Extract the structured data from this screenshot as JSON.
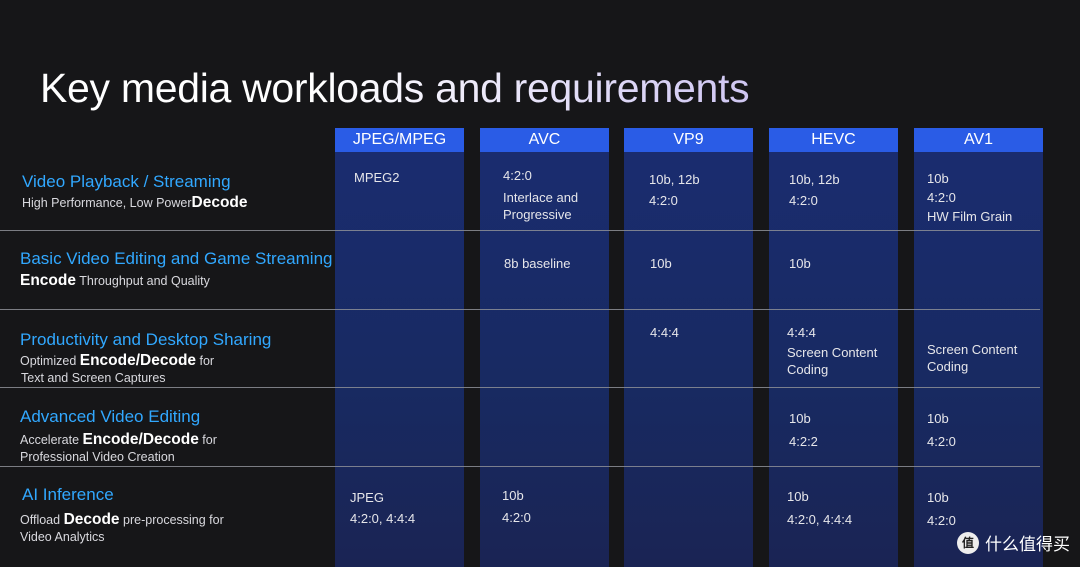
{
  "title": "Key media workloads and requirements",
  "columns": [
    "JPEG/MPEG",
    "AVC",
    "VP9",
    "HEVC",
    "AV1"
  ],
  "rows": [
    {
      "title": "Video Playback / Streaming",
      "sub_lines": [
        {
          "pre": "High Performance, Low Power",
          "bold": "Decode",
          "post": ""
        }
      ],
      "cells": [
        [
          "MPEG2"
        ],
        [
          "4:2:0",
          "Interlace and",
          "Progressive"
        ],
        [
          "10b, 12b",
          "4:2:0"
        ],
        [
          "10b, 12b",
          "4:2:0"
        ],
        [
          "10b",
          "4:2:0",
          "HW Film Grain"
        ]
      ]
    },
    {
      "title": "Basic Video Editing and Game Streaming",
      "sub_lines": [
        {
          "pre": "",
          "bold": "Encode",
          "post": " Throughput and Quality"
        }
      ],
      "cells": [
        [],
        [
          "8b baseline"
        ],
        [
          "10b"
        ],
        [
          "10b"
        ],
        []
      ]
    },
    {
      "title": "Productivity and Desktop Sharing",
      "sub_lines": [
        {
          "pre": "Optimized ",
          "bold": "Encode/Decode",
          "post": " for"
        },
        {
          "pre": "Text and Screen Captures",
          "bold": "",
          "post": ""
        }
      ],
      "cells": [
        [],
        [],
        [
          "4:4:4"
        ],
        [
          "4:4:4",
          "Screen Content",
          "Coding"
        ],
        [
          "Screen Content",
          "Coding"
        ]
      ]
    },
    {
      "title": "Advanced Video Editing",
      "sub_lines": [
        {
          "pre": "Accelerate ",
          "bold": "Encode/Decode",
          "post": " for"
        },
        {
          "pre": "Professional Video Creation",
          "bold": "",
          "post": ""
        }
      ],
      "cells": [
        [],
        [],
        [],
        [
          "10b",
          "4:2:2"
        ],
        [
          "10b",
          "4:2:0"
        ]
      ]
    },
    {
      "title": "AI Inference",
      "sub_lines": [
        {
          "pre": "Offload ",
          "bold": "Decode",
          "post": " pre-processing for"
        },
        {
          "pre": "Video Analytics",
          "bold": "",
          "post": ""
        }
      ],
      "cells": [
        [
          "JPEG",
          "4:2:0, 4:4:4"
        ],
        [
          "10b",
          "4:2:0"
        ],
        [],
        [
          "10b",
          "4:2:0, 4:4:4"
        ],
        [
          "10b",
          "4:2:0"
        ]
      ]
    }
  ],
  "watermark": {
    "badge": "值",
    "text": "什么值得买"
  },
  "colors": {
    "background": "#161618",
    "header": "#2a5ce6",
    "column": "#1a2c6f",
    "row_title": "#31a8ff"
  }
}
